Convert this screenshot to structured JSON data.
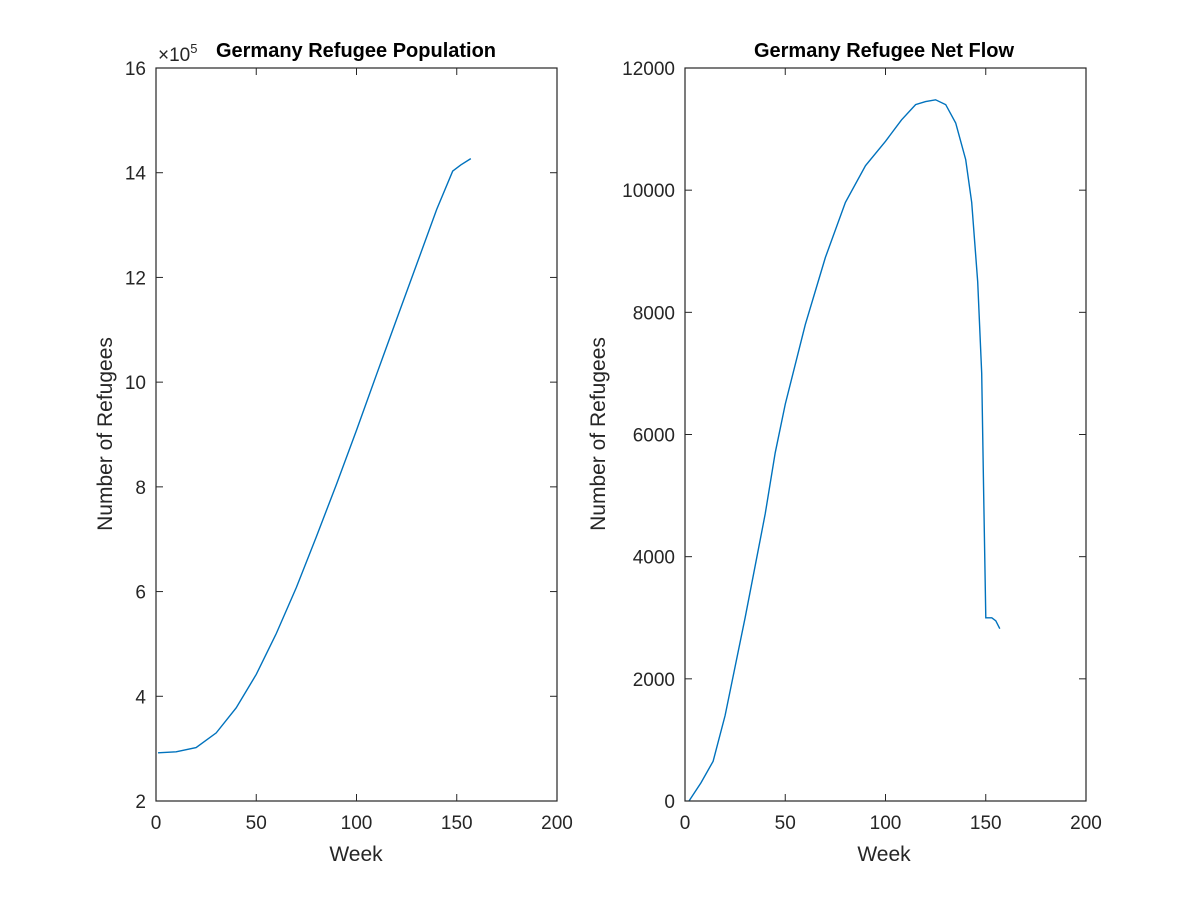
{
  "chart_data": [
    {
      "type": "line",
      "title": "Germany Refugee Population",
      "xlabel": "Week",
      "ylabel": "Number of Refugees",
      "xlim": [
        0,
        200
      ],
      "ylim": [
        2,
        16
      ],
      "xticks": [
        "0",
        "50",
        "100",
        "150",
        "200"
      ],
      "yticks": [
        "2",
        "4",
        "6",
        "8",
        "10",
        "12",
        "14",
        "16"
      ],
      "exponent_label": "×10^5",
      "grid": false,
      "series": [
        {
          "color": "#0072BD",
          "x": [
            1,
            10,
            20,
            30,
            40,
            50,
            60,
            70,
            80,
            90,
            100,
            110,
            120,
            130,
            140,
            148,
            152,
            157
          ],
          "y": [
            2.92,
            2.94,
            3.02,
            3.3,
            3.78,
            4.42,
            5.2,
            6.08,
            7.05,
            8.05,
            9.08,
            10.15,
            11.2,
            12.25,
            13.3,
            14.03,
            14.15,
            14.27
          ]
        }
      ]
    },
    {
      "type": "line",
      "title": "Germany Refugee Net Flow",
      "xlabel": "Week",
      "ylabel": "Number of Refugees",
      "xlim": [
        0,
        200
      ],
      "ylim": [
        0,
        12000
      ],
      "xticks": [
        "0",
        "50",
        "100",
        "150",
        "200"
      ],
      "yticks": [
        "0",
        "2000",
        "4000",
        "6000",
        "8000",
        "10000",
        "12000"
      ],
      "grid": false,
      "series": [
        {
          "color": "#0072BD",
          "x": [
            2,
            8,
            14,
            20,
            30,
            40,
            45,
            50,
            60,
            70,
            80,
            90,
            100,
            108,
            115,
            120,
            125,
            130,
            135,
            140,
            143,
            146,
            148,
            149,
            150,
            151,
            153,
            155,
            157
          ],
          "y": [
            0,
            300,
            650,
            1400,
            3000,
            4700,
            5700,
            6500,
            7800,
            8900,
            9800,
            10400,
            10800,
            11150,
            11400,
            11450,
            11480,
            11400,
            11100,
            10500,
            9800,
            8500,
            7000,
            5000,
            3000,
            3000,
            3000,
            2950,
            2820
          ]
        }
      ]
    }
  ]
}
